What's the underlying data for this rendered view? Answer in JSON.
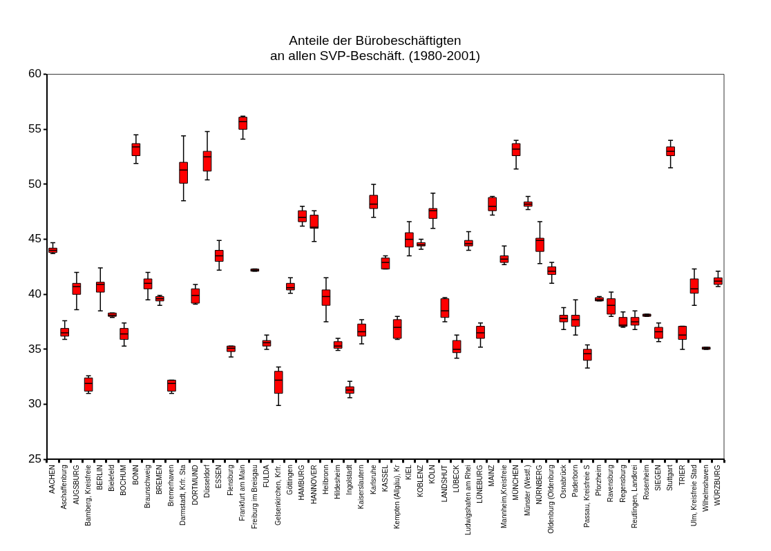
{
  "chart_data": {
    "type": "box",
    "title": [
      "Anteile der Bürobeschäftigten",
      "an allen SVP-Beschäft. (1980-2001)"
    ],
    "categories": [
      "AACHEN",
      "Aschaffenburg",
      "AUGSBURG",
      "Bamberg, Kreisfreie",
      "BERLIN",
      "Bielefeld",
      "BOCHUM",
      "BONN",
      "Braunschweig",
      "BREMEN",
      "Bremerhaven",
      "Darmstadt, Krfr. Sta",
      "DORTMUND",
      "Düsseldorf",
      "ESSEN",
      "Flensburg",
      "Frankfurt am Main",
      "Freiburg im Breisgau",
      "FULDA",
      "Gelsenkirchen, Krfr.",
      "Göttingen",
      "HAMBURG",
      "HANNOVER",
      "Heilbronn",
      "Hildesheim",
      "Ingolstadt",
      "Kaiserslautern",
      "Karlsruhe",
      "KASSEL",
      "Kempten (Allgäu), Kr",
      "KIEL",
      "KOBLENZ",
      "KÖLN",
      "LANDSHUT",
      "LÜBECK",
      "Ludwigshafen am Rhei",
      "LÜNEBURG",
      "MAINZ",
      "Mannheim,Kreisfreie",
      "MÜNCHEN",
      "Münster (Westf.)",
      "NÜRNBERG",
      "Oldenburg (Oldenburg",
      "Osnabrück",
      "Paderborn",
      "Passau, Kreisfreie S",
      "Pforzheim",
      "Ravensburg",
      "Regensburg",
      "Reutlingen, Landkrei",
      "Rosenheim",
      "SIEGEN",
      "Stuttgart",
      "TRIER",
      "Ulm, Kreisfreie Stad",
      "Wilhelmshaven",
      "WÜRZBURG"
    ],
    "color": "#ff0000",
    "boxes": [
      {
        "low": 43.7,
        "q1": 43.8,
        "median": 44.0,
        "q3": 44.2,
        "high": 44.7
      },
      {
        "low": 35.9,
        "q1": 36.2,
        "median": 36.5,
        "q3": 36.9,
        "high": 37.6
      },
      {
        "low": 38.6,
        "q1": 40.0,
        "median": 40.7,
        "q3": 41.0,
        "high": 42.0
      },
      {
        "low": 31.0,
        "q1": 31.2,
        "median": 31.9,
        "q3": 32.4,
        "high": 32.6
      },
      {
        "low": 38.5,
        "q1": 40.2,
        "median": 40.9,
        "q3": 41.1,
        "high": 42.4
      },
      {
        "low": 37.9,
        "q1": 38.0,
        "median": 38.1,
        "q3": 38.3,
        "high": 38.3
      },
      {
        "low": 35.3,
        "q1": 35.9,
        "median": 36.4,
        "q3": 36.9,
        "high": 37.4
      },
      {
        "low": 51.9,
        "q1": 52.6,
        "median": 53.4,
        "q3": 53.7,
        "high": 54.5
      },
      {
        "low": 39.5,
        "q1": 40.5,
        "median": 41.0,
        "q3": 41.4,
        "high": 42.0
      },
      {
        "low": 39.0,
        "q1": 39.4,
        "median": 39.6,
        "q3": 39.8,
        "high": 39.9
      },
      {
        "low": 31.0,
        "q1": 31.2,
        "median": 31.9,
        "q3": 32.2,
        "high": 32.2
      },
      {
        "low": 48.5,
        "q1": 50.1,
        "median": 51.3,
        "q3": 52.0,
        "high": 54.4
      },
      {
        "low": 39.1,
        "q1": 39.2,
        "median": 39.9,
        "q3": 40.5,
        "high": 40.9
      },
      {
        "low": 50.4,
        "q1": 51.2,
        "median": 52.5,
        "q3": 53.0,
        "high": 54.8
      },
      {
        "low": 42.2,
        "q1": 43.0,
        "median": 43.5,
        "q3": 44.0,
        "high": 44.9
      },
      {
        "low": 34.3,
        "q1": 34.8,
        "median": 35.1,
        "q3": 35.3,
        "high": 35.3
      },
      {
        "low": 54.1,
        "q1": 55.0,
        "median": 55.7,
        "q3": 56.1,
        "high": 56.2
      },
      {
        "low": 42.1,
        "q1": 42.1,
        "median": 42.2,
        "q3": 42.3,
        "high": 42.3
      },
      {
        "low": 35.0,
        "q1": 35.3,
        "median": 35.6,
        "q3": 35.8,
        "high": 36.3
      },
      {
        "low": 29.9,
        "q1": 31.0,
        "median": 32.2,
        "q3": 33.0,
        "high": 33.4
      },
      {
        "low": 40.1,
        "q1": 40.4,
        "median": 40.6,
        "q3": 41.0,
        "high": 41.5
      },
      {
        "low": 46.2,
        "q1": 46.6,
        "median": 47.0,
        "q3": 47.6,
        "high": 48.0
      },
      {
        "low": 44.8,
        "q1": 46.0,
        "median": 46.1,
        "q3": 47.2,
        "high": 47.6
      },
      {
        "low": 37.5,
        "q1": 39.0,
        "median": 39.8,
        "q3": 40.4,
        "high": 41.5
      },
      {
        "low": 34.9,
        "q1": 35.1,
        "median": 35.3,
        "q3": 35.7,
        "high": 36.0
      },
      {
        "low": 30.6,
        "q1": 31.0,
        "median": 31.3,
        "q3": 31.6,
        "high": 32.1
      },
      {
        "low": 35.5,
        "q1": 36.2,
        "median": 36.6,
        "q3": 37.3,
        "high": 37.7
      },
      {
        "low": 47.0,
        "q1": 47.8,
        "median": 48.2,
        "q3": 49.0,
        "high": 50.0
      },
      {
        "low": 42.3,
        "q1": 42.3,
        "median": 42.9,
        "q3": 43.3,
        "high": 43.5
      },
      {
        "low": 35.9,
        "q1": 36.0,
        "median": 37.0,
        "q3": 37.7,
        "high": 38.0
      },
      {
        "low": 43.5,
        "q1": 44.3,
        "median": 45.0,
        "q3": 45.6,
        "high": 46.6
      },
      {
        "low": 44.1,
        "q1": 44.4,
        "median": 44.5,
        "q3": 44.7,
        "high": 45.0
      },
      {
        "low": 46.0,
        "q1": 46.9,
        "median": 47.6,
        "q3": 47.8,
        "high": 49.2
      },
      {
        "low": 37.5,
        "q1": 37.9,
        "median": 38.5,
        "q3": 39.6,
        "high": 39.7
      },
      {
        "low": 34.2,
        "q1": 34.7,
        "median": 35.0,
        "q3": 35.8,
        "high": 36.3
      },
      {
        "low": 44.0,
        "q1": 44.4,
        "median": 44.6,
        "q3": 44.9,
        "high": 45.7
      },
      {
        "low": 35.2,
        "q1": 36.0,
        "median": 36.5,
        "q3": 37.1,
        "high": 37.4
      },
      {
        "low": 47.2,
        "q1": 47.6,
        "median": 48.0,
        "q3": 48.8,
        "high": 48.9
      },
      {
        "low": 42.7,
        "q1": 42.9,
        "median": 43.2,
        "q3": 43.5,
        "high": 44.4
      },
      {
        "low": 51.4,
        "q1": 52.6,
        "median": 53.2,
        "q3": 53.7,
        "high": 54.0
      },
      {
        "low": 47.7,
        "q1": 48.0,
        "median": 48.2,
        "q3": 48.4,
        "high": 48.9
      },
      {
        "low": 42.8,
        "q1": 43.9,
        "median": 44.9,
        "q3": 45.1,
        "high": 46.6
      },
      {
        "low": 41.0,
        "q1": 41.8,
        "median": 42.1,
        "q3": 42.5,
        "high": 42.9
      },
      {
        "low": 36.8,
        "q1": 37.5,
        "median": 37.8,
        "q3": 38.1,
        "high": 38.8
      },
      {
        "low": 36.3,
        "q1": 37.1,
        "median": 37.7,
        "q3": 38.1,
        "high": 39.5
      },
      {
        "low": 33.3,
        "q1": 34.0,
        "median": 34.6,
        "q3": 35.0,
        "high": 35.4
      },
      {
        "low": 39.4,
        "q1": 39.4,
        "median": 39.5,
        "q3": 39.7,
        "high": 39.8
      },
      {
        "low": 38.0,
        "q1": 38.2,
        "median": 39.0,
        "q3": 39.6,
        "high": 40.2
      },
      {
        "low": 37.0,
        "q1": 37.1,
        "median": 37.2,
        "q3": 37.9,
        "high": 38.4
      },
      {
        "low": 36.8,
        "q1": 37.2,
        "median": 37.5,
        "q3": 37.9,
        "high": 38.5
      },
      {
        "low": 38.0,
        "q1": 38.0,
        "median": 38.1,
        "q3": 38.2,
        "high": 38.2
      },
      {
        "low": 35.7,
        "q1": 36.0,
        "median": 36.6,
        "q3": 37.0,
        "high": 37.4
      },
      {
        "low": 51.5,
        "q1": 52.6,
        "median": 53.0,
        "q3": 53.4,
        "high": 54.0
      },
      {
        "low": 35.0,
        "q1": 35.9,
        "median": 36.3,
        "q3": 37.1,
        "high": 37.1
      },
      {
        "low": 39.0,
        "q1": 40.1,
        "median": 40.5,
        "q3": 41.4,
        "high": 42.3
      },
      {
        "low": 35.0,
        "q1": 35.0,
        "median": 35.1,
        "q3": 35.2,
        "high": 35.2
      },
      {
        "low": 40.7,
        "q1": 40.9,
        "median": 41.2,
        "q3": 41.5,
        "high": 42.1
      }
    ],
    "ylim": [
      25,
      60
    ],
    "yticks": [
      25,
      30,
      35,
      40,
      45,
      50,
      55,
      60
    ],
    "grid": false,
    "legend": false
  }
}
